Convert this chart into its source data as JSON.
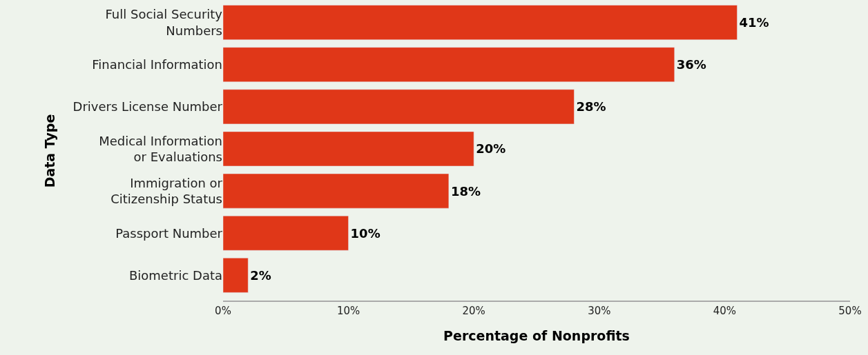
{
  "chart_data": {
    "type": "bar",
    "orientation": "horizontal",
    "categories": [
      "Full Social Security\nNumbers",
      "Financial Information",
      "Drivers License Number",
      "Medical Information\nor Evaluations",
      "Immigration or\nCitizenship Status",
      "Passport Number",
      "Biometric Data"
    ],
    "values": [
      41,
      36,
      28,
      20,
      18,
      10,
      2
    ],
    "value_labels": [
      "41%",
      "36%",
      "28%",
      "20%",
      "18%",
      "10%",
      "2%"
    ],
    "color": "#e03718",
    "xlim": [
      0,
      50
    ],
    "xticks": [
      {
        "value": 0,
        "label": "0%"
      },
      {
        "value": 10,
        "label": "10%"
      },
      {
        "value": 20,
        "label": "20%"
      },
      {
        "value": 30,
        "label": "30%"
      },
      {
        "value": 40,
        "label": "40%"
      },
      {
        "value": 50,
        "label": "50%"
      }
    ],
    "xlabel": "Percentage of Nonprofits",
    "ylabel": "Data Type"
  }
}
